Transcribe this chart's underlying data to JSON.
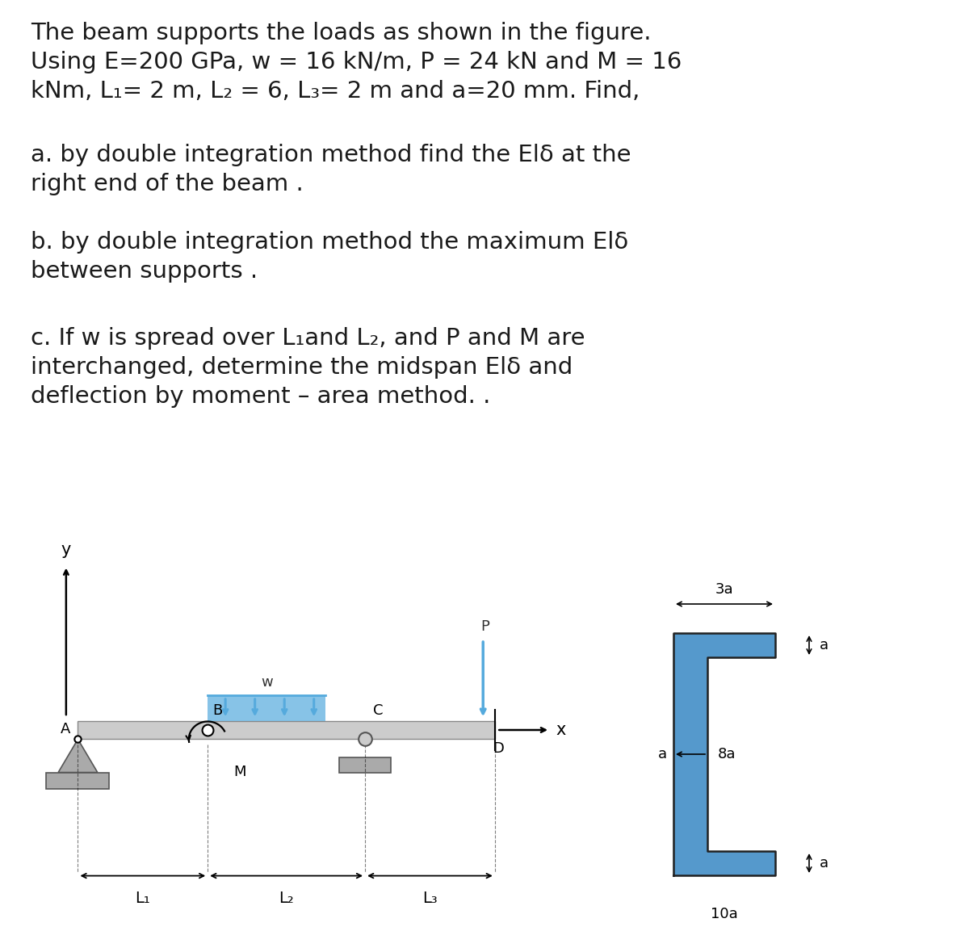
{
  "title_text_line1": "The beam supports the loads as shown in the figure.",
  "title_text_line2": "Using E=200 GPa, w = 16 kN/m, P = 24 kN and M = 16",
  "title_text_line3": "kNm, L₁= 2 m, L₂ = 6, L₃= 2 m and a=20 mm. Find,",
  "part_a_line1": "a. by double integration method find the Elδ at the",
  "part_a_line2": "right end of the beam .",
  "part_b_line1": "b. by double integration method the maximum Elδ",
  "part_b_line2": "between supports .",
  "part_c_line1": "c. If w is spread over L₁and L₂, and P and M are",
  "part_c_line2": "interchanged, determine the midspan Elδ and",
  "part_c_line3": "deflection by moment – area method. .",
  "bg_color": "#ffffff",
  "text_color": "#1a1a1a",
  "beam_color": "#cccccc",
  "load_color": "#55aadd",
  "cross_section_color": "#5599cc",
  "support_color": "#aaaaaa"
}
